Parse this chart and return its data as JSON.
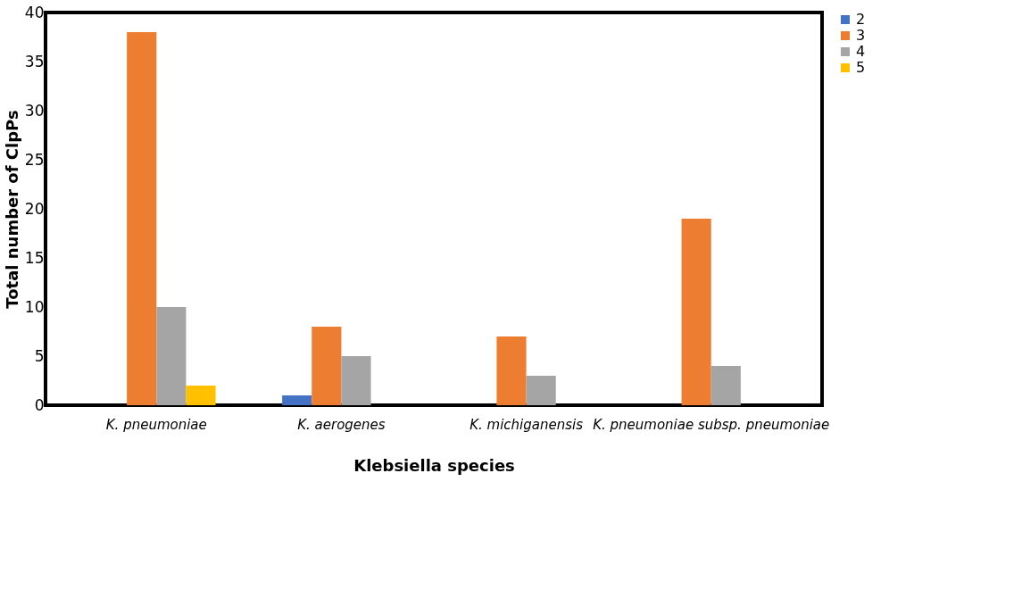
{
  "chart_data": {
    "type": "bar",
    "xlabel": "Klebsiella species",
    "ylabel": "Total number of ClpPs",
    "categories": [
      "K. pneumoniae",
      "K. aerogenes",
      "K. michiganensis",
      "K. pneumoniae subsp. pneumoniae"
    ],
    "series": [
      {
        "name": "2",
        "color": "#4472c4",
        "values": [
          0,
          1,
          0,
          0
        ]
      },
      {
        "name": "3",
        "color": "#ed7d31",
        "values": [
          38,
          8,
          7,
          19
        ]
      },
      {
        "name": "4",
        "color": "#a5a5a5",
        "values": [
          10,
          5,
          3,
          4
        ]
      },
      {
        "name": "5",
        "color": "#ffc000",
        "values": [
          2,
          0,
          0,
          0
        ]
      }
    ],
    "ylim": [
      0,
      40
    ],
    "yticks": [
      0,
      5,
      10,
      15,
      20,
      25,
      30,
      35,
      40
    ],
    "grid": false,
    "legend": "right"
  }
}
